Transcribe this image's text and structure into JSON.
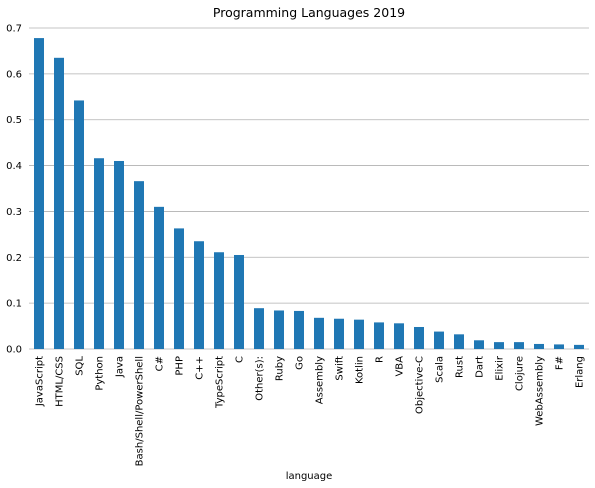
{
  "chart_data": {
    "type": "bar",
    "title": "Programming Languages 2019",
    "xlabel": "language",
    "ylabel": "",
    "ylim": [
      0,
      0.7
    ],
    "yticks": [
      "0.0",
      "0.1",
      "0.2",
      "0.3",
      "0.4",
      "0.5",
      "0.6",
      "0.7"
    ],
    "grid": "horizontal",
    "bar_color": "#1f77b4",
    "categories": [
      "JavaScript",
      "HTML/CSS",
      "SQL",
      "Python",
      "Java",
      "Bash/Shell/PowerShell",
      "C#",
      "PHP",
      "C++",
      "TypeScript",
      "C",
      "Other(s):",
      "Ruby",
      "Go",
      "Assembly",
      "Swift",
      "Kotlin",
      "R",
      "VBA",
      "Objective-C",
      "Scala",
      "Rust",
      "Dart",
      "Elixir",
      "Clojure",
      "WebAssembly",
      "F#",
      "Erlang"
    ],
    "values": [
      0.678,
      0.635,
      0.542,
      0.416,
      0.41,
      0.366,
      0.31,
      0.263,
      0.235,
      0.211,
      0.205,
      0.089,
      0.084,
      0.083,
      0.068,
      0.066,
      0.064,
      0.058,
      0.056,
      0.048,
      0.038,
      0.032,
      0.019,
      0.015,
      0.015,
      0.011,
      0.01,
      0.009
    ]
  }
}
